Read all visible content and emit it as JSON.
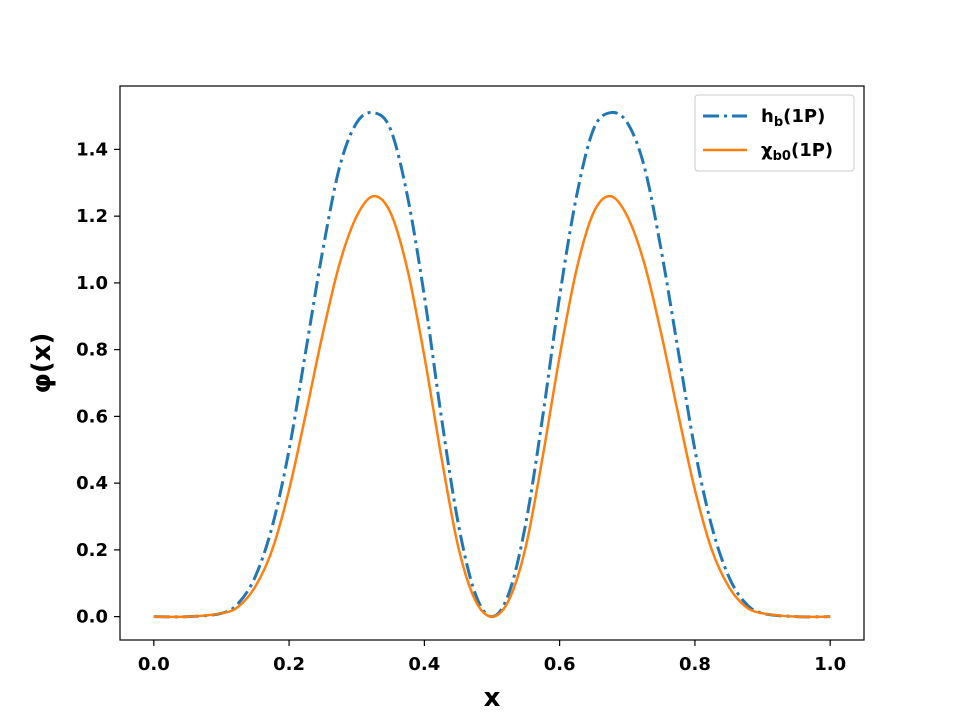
{
  "chart_data": {
    "type": "line",
    "title": "",
    "xlabel": "x",
    "ylabel": "φ(x)",
    "xlim": [
      -0.05,
      1.05
    ],
    "ylim": [
      -0.07,
      1.59
    ],
    "xticks": [
      0.0,
      0.2,
      0.4,
      0.6,
      0.8,
      1.0
    ],
    "xtick_labels": [
      "0.0",
      "0.2",
      "0.4",
      "0.6",
      "0.8",
      "1.0"
    ],
    "yticks": [
      0.0,
      0.2,
      0.4,
      0.6,
      0.8,
      1.0,
      1.2,
      1.4
    ],
    "ytick_labels": [
      "0.0",
      "0.2",
      "0.4",
      "0.6",
      "0.8",
      "1.0",
      "1.2",
      "1.4"
    ],
    "grid": false,
    "legend_position": "top-right",
    "x": [
      0.0,
      0.05,
      0.1,
      0.125,
      0.15,
      0.175,
      0.2,
      0.225,
      0.25,
      0.275,
      0.3,
      0.325,
      0.35,
      0.375,
      0.4,
      0.425,
      0.45,
      0.475,
      0.5,
      0.525,
      0.55,
      0.575,
      0.6,
      0.625,
      0.65,
      0.675,
      0.7,
      0.725,
      0.75,
      0.775,
      0.8,
      0.825,
      0.85,
      0.875,
      0.9,
      0.95,
      1.0
    ],
    "series": [
      {
        "name": "h_b(1P)",
        "name_main": "h",
        "name_sub": "b",
        "name_rest": "(1P)",
        "color": "#1f77b4",
        "style": "dashdot",
        "values": [
          0.0,
          0.0,
          0.01,
          0.04,
          0.12,
          0.27,
          0.5,
          0.8,
          1.1,
          1.35,
          1.48,
          1.51,
          1.46,
          1.26,
          0.96,
          0.6,
          0.28,
          0.07,
          0.0,
          0.07,
          0.28,
          0.6,
          0.96,
          1.26,
          1.46,
          1.51,
          1.48,
          1.35,
          1.1,
          0.8,
          0.5,
          0.27,
          0.12,
          0.04,
          0.01,
          0.0,
          0.0
        ]
      },
      {
        "name": "χ_b0(1P)",
        "name_main": "χ",
        "name_sub": "b0",
        "name_rest": "(1P)",
        "color": "#ff7f0e",
        "style": "solid",
        "values": [
          0.0,
          0.0,
          0.01,
          0.03,
          0.09,
          0.2,
          0.38,
          0.61,
          0.85,
          1.06,
          1.2,
          1.26,
          1.21,
          1.04,
          0.78,
          0.48,
          0.21,
          0.05,
          0.0,
          0.05,
          0.21,
          0.48,
          0.78,
          1.04,
          1.21,
          1.26,
          1.2,
          1.06,
          0.85,
          0.61,
          0.38,
          0.2,
          0.09,
          0.03,
          0.01,
          0.0,
          0.0
        ]
      }
    ]
  }
}
